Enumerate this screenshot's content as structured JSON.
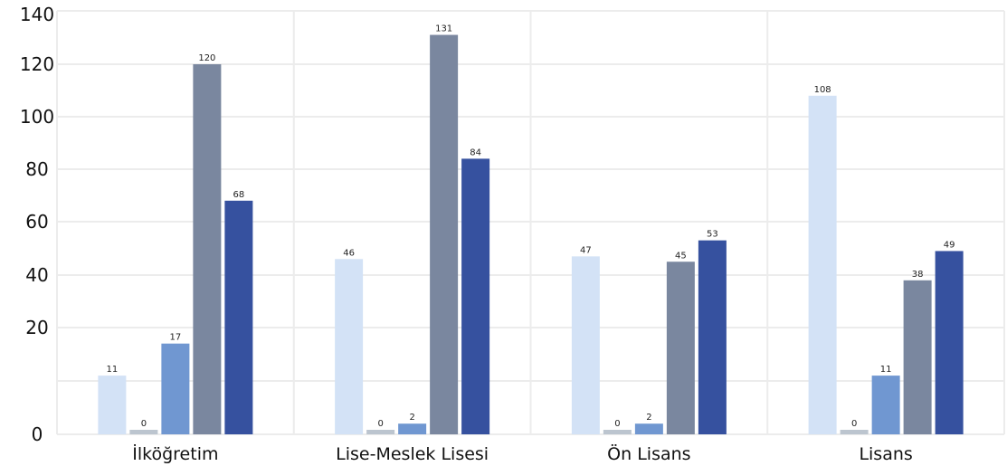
{
  "chart_data": {
    "type": "bar",
    "categories": [
      "İlköğretim",
      "Lise-Meslek Lisesi",
      "Ön Lisans",
      "Lisans"
    ],
    "series": [
      {
        "color": "#d3e2f6",
        "values": [
          11,
          46,
          47,
          108
        ]
      },
      {
        "color": "#bcc5cf",
        "values": [
          0,
          0,
          0,
          0
        ]
      },
      {
        "color": "#7097d1",
        "values": [
          17,
          2,
          2,
          11
        ]
      },
      {
        "color": "#7a879f",
        "values": [
          120,
          131,
          45,
          38
        ]
      },
      {
        "color": "#36519f",
        "values": [
          68,
          84,
          53,
          49
        ]
      }
    ],
    "y_ticks": [
      {
        "value": 0,
        "label": "0"
      },
      {
        "value": 20,
        "label": "20"
      },
      {
        "value": 40,
        "label": "40"
      },
      {
        "value": 60,
        "label": "60"
      },
      {
        "value": 80,
        "label": "80"
      },
      {
        "value": 100,
        "label": "100"
      },
      {
        "value": 120,
        "label": "120"
      },
      {
        "value": 140,
        "label": "140"
      }
    ],
    "ylim": [
      0,
      140
    ],
    "grid": true,
    "title": "",
    "xlabel": "",
    "ylabel": ""
  }
}
